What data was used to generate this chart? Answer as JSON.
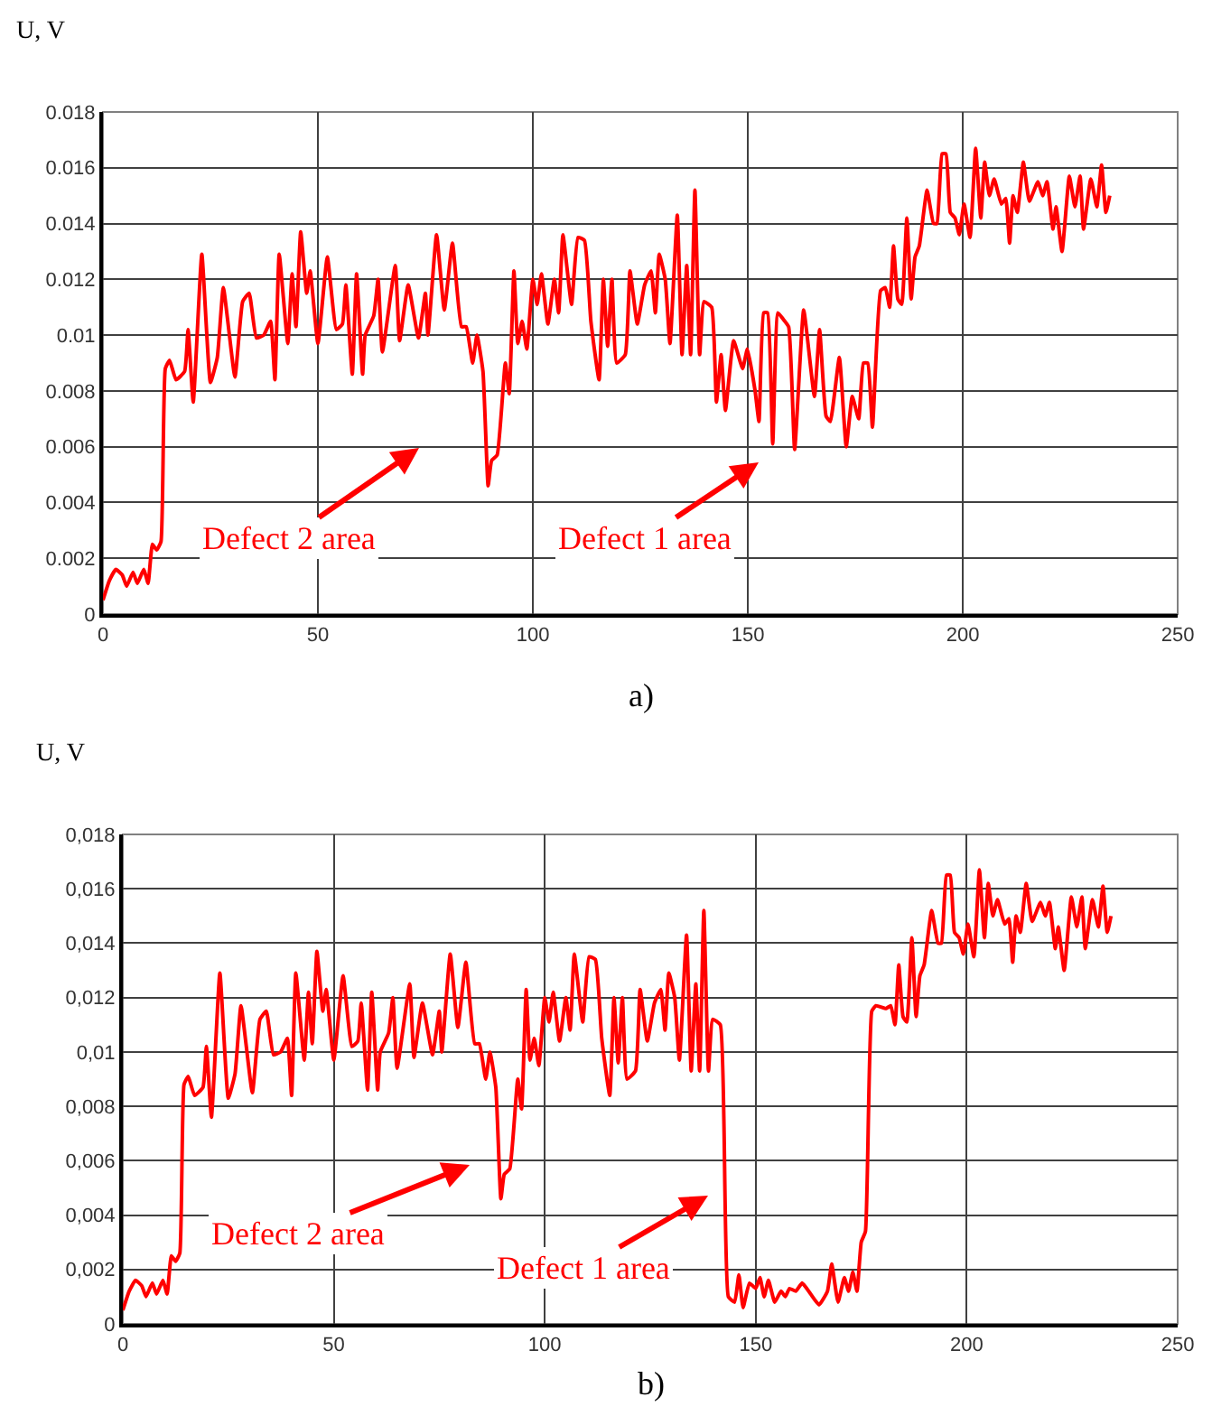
{
  "chart_data": [
    {
      "type": "line",
      "ylabel": "U, V",
      "xlim": [
        0,
        250
      ],
      "xticks": [
        0,
        50,
        100,
        150,
        200,
        250
      ],
      "ylim": [
        0,
        0.018
      ],
      "yticks": [
        0,
        0.002,
        0.004,
        0.006,
        0.008,
        0.01,
        0.012,
        0.014,
        0.016,
        0.018
      ],
      "grid": true,
      "annotations": [
        "Defect 2 area",
        "Defect 1 area",
        "a)"
      ],
      "series": [
        {
          "color": "#ff0000",
          "x": [
            0,
            1.5,
            3,
            4.5,
            5.5,
            7,
            8,
            9.5,
            10.5,
            11.5,
            12.5,
            13.5,
            14.5,
            15.5,
            17,
            19,
            19.8,
            21,
            23,
            25,
            26.6,
            28,
            30.7,
            32.5,
            34,
            35.7,
            37.4,
            39,
            40,
            41,
            43,
            44,
            44.9,
            46,
            47.4,
            48.2,
            50,
            52.2,
            54.3,
            55.7,
            56.5,
            58,
            59,
            60.4,
            61,
            63,
            64,
            65,
            68,
            69,
            71,
            73.4,
            75,
            75.6,
            77.6,
            79.4,
            81.3,
            83.4,
            84.5,
            86,
            87,
            88.4,
            89.6,
            90.4,
            91.7,
            93.6,
            94.5,
            95.6,
            96.5,
            97.5,
            98.6,
            100,
            101,
            102,
            103.5,
            105,
            106,
            107,
            109,
            110.5,
            112,
            113.5,
            115.4,
            116.4,
            117.4,
            118.4,
            119.5,
            121.5,
            122.6,
            124.3,
            126,
            127.5,
            128.5,
            129.4,
            130.8,
            131.9,
            133.6,
            134.7,
            135.8,
            136.7,
            137.7,
            138.8,
            139.8,
            141.6,
            142.7,
            143.8,
            144.8,
            146.7,
            148.8,
            149.9,
            151.7,
            152.6,
            153.7,
            154.6,
            155.8,
            157,
            158.1,
            159.5,
            160.9,
            163,
            165.5,
            166.7,
            168.2,
            169.2,
            171.3,
            172.9,
            174.3,
            175.8,
            176.9,
            177.9,
            179,
            180.9,
            182,
            183,
            183.9,
            184.9,
            185.8,
            187,
            188,
            188.9,
            189.9,
            191.7,
            193.2,
            194,
            195.2,
            196.1,
            197.1,
            198.2,
            199.2,
            200.3,
            201.7,
            203,
            204.2,
            205.1,
            206.2,
            207.3,
            209,
            210,
            210.9,
            211.7,
            212.7,
            214.1,
            215.5,
            217.5,
            218.6,
            219.6,
            221,
            221.7,
            223.1,
            224.8,
            226.1,
            227.3,
            228.1,
            229.8,
            231.2,
            232.3,
            233.3,
            234.2
          ],
          "values": [
            0.0005,
            0.0012,
            0.0016,
            0.0014,
            0.001,
            0.0015,
            0.0011,
            0.0016,
            0.0011,
            0.0025,
            0.0023,
            0.0026,
            0.0088,
            0.0091,
            0.0084,
            0.0087,
            0.0102,
            0.0076,
            0.0129,
            0.0083,
            0.0092,
            0.0117,
            0.0085,
            0.0112,
            0.0115,
            0.0099,
            0.01,
            0.0105,
            0.0084,
            0.0129,
            0.0097,
            0.0122,
            0.0103,
            0.0137,
            0.0115,
            0.0123,
            0.0097,
            0.0128,
            0.0102,
            0.0104,
            0.0118,
            0.0086,
            0.0122,
            0.0086,
            0.01,
            0.0107,
            0.012,
            0.0094,
            0.0125,
            0.0098,
            0.0118,
            0.0099,
            0.0115,
            0.01,
            0.0136,
            0.0109,
            0.0133,
            0.0103,
            0.0103,
            0.009,
            0.01,
            0.0087,
            0.0046,
            0.0055,
            0.0057,
            0.009,
            0.0079,
            0.0123,
            0.0097,
            0.0105,
            0.0095,
            0.012,
            0.0111,
            0.0122,
            0.0104,
            0.012,
            0.0108,
            0.0136,
            0.0111,
            0.0135,
            0.0134,
            0.0105,
            0.0084,
            0.012,
            0.0096,
            0.012,
            0.009,
            0.0093,
            0.0123,
            0.0104,
            0.0118,
            0.0123,
            0.0108,
            0.0129,
            0.012,
            0.0097,
            0.0143,
            0.0093,
            0.0125,
            0.0093,
            0.0152,
            0.0093,
            0.0112,
            0.011,
            0.0076,
            0.0093,
            0.0073,
            0.0098,
            0.0088,
            0.0095,
            0.008,
            0.0069,
            0.0108,
            0.0108,
            0.0061,
            0.0108,
            0.0106,
            0.0103,
            0.0059,
            0.0109,
            0.0078,
            0.0102,
            0.0071,
            0.0069,
            0.0092,
            0.006,
            0.0078,
            0.007,
            0.009,
            0.009,
            0.0067,
            0.0116,
            0.0117,
            0.011,
            0.0132,
            0.0113,
            0.0111,
            0.0142,
            0.0113,
            0.0128,
            0.0132,
            0.0152,
            0.014,
            0.014,
            0.0165,
            0.0165,
            0.0144,
            0.0142,
            0.0136,
            0.0147,
            0.0135,
            0.0167,
            0.0142,
            0.0162,
            0.015,
            0.0156,
            0.0147,
            0.0149,
            0.0133,
            0.015,
            0.0144,
            0.0162,
            0.0148,
            0.0155,
            0.015,
            0.0155,
            0.0138,
            0.0146,
            0.013,
            0.0157,
            0.0146,
            0.0157,
            0.0138,
            0.0156,
            0.0146,
            0.0161,
            0.0144,
            0.015
          ]
        }
      ]
    },
    {
      "type": "line",
      "ylabel": "U, V",
      "xlim": [
        0,
        250
      ],
      "xticks": [
        0,
        50,
        100,
        150,
        200,
        250
      ],
      "ylim": [
        0,
        0.018
      ],
      "yticks": [
        0,
        {
          "value": 0.002,
          "label": "0,002"
        },
        {
          "value": 0.004,
          "label": "0,004"
        },
        {
          "value": 0.006,
          "label": "0,006"
        },
        {
          "value": 0.008,
          "label": "0,008"
        },
        {
          "value": 0.01,
          "label": "0,01"
        },
        {
          "value": 0.012,
          "label": "0,012"
        },
        {
          "value": 0.014,
          "label": "0,014"
        },
        {
          "value": 0.016,
          "label": "0,016"
        },
        {
          "value": 0.018,
          "label": "0,018"
        }
      ],
      "grid": true,
      "annotations": [
        "Defect 2 area",
        "Defect 1 area",
        "b)"
      ],
      "series": [
        {
          "color": "#ff0000",
          "x": [
            0,
            1.5,
            3,
            4.5,
            5.5,
            7,
            8,
            9.5,
            10.5,
            11.5,
            12.5,
            13.5,
            14.5,
            15.5,
            17,
            19,
            19.8,
            21,
            23,
            25,
            26.6,
            28,
            30.7,
            32.5,
            34,
            35.7,
            37.4,
            39,
            40,
            41,
            43,
            44,
            44.9,
            46,
            47.4,
            48.2,
            50,
            52.2,
            54.3,
            55.7,
            56.5,
            58,
            59,
            60.4,
            61,
            63,
            64,
            65,
            68,
            69,
            71,
            73.4,
            75,
            75.6,
            77.6,
            79.4,
            81.3,
            83.4,
            84.5,
            86,
            87,
            88.4,
            89.6,
            90.4,
            91.7,
            93.6,
            94.5,
            95.6,
            96.5,
            97.5,
            98.6,
            100,
            101,
            102,
            103.5,
            105,
            106,
            107,
            109,
            110.5,
            112,
            113.5,
            115.4,
            116.4,
            117.4,
            118.4,
            119.5,
            121.5,
            122.6,
            124.3,
            126,
            127.5,
            128.5,
            129.4,
            130.8,
            131.9,
            133.6,
            134.7,
            135.8,
            136.7,
            137.7,
            138.8,
            139.8,
            141.6,
            143.5,
            145,
            146,
            147,
            148.5,
            150,
            151,
            152,
            153,
            154.5,
            156,
            157,
            158,
            159.5,
            161,
            163,
            165,
            167,
            168,
            169.5,
            171,
            172,
            173,
            174,
            175,
            176,
            177.5,
            178.5,
            180.9,
            182,
            183,
            183.9,
            184.9,
            185.8,
            187,
            188,
            188.9,
            189.9,
            191.7,
            193.2,
            194,
            195.2,
            196.1,
            197.1,
            198.2,
            199.2,
            200.3,
            201.7,
            203,
            204.2,
            205.1,
            206.2,
            207.3,
            209,
            210,
            210.9,
            211.7,
            212.7,
            214.1,
            215.5,
            217.5,
            218.6,
            219.6,
            221,
            221.7,
            223.1,
            224.8,
            226.1,
            227.3,
            228.1,
            229.8,
            231.2,
            232.3,
            233.3,
            234.2
          ],
          "values": [
            0.0005,
            0.0012,
            0.0016,
            0.0014,
            0.001,
            0.0015,
            0.0011,
            0.0016,
            0.0011,
            0.0025,
            0.0023,
            0.0026,
            0.0088,
            0.0091,
            0.0084,
            0.0087,
            0.0102,
            0.0076,
            0.0129,
            0.0083,
            0.0092,
            0.0117,
            0.0085,
            0.0112,
            0.0115,
            0.0099,
            0.01,
            0.0105,
            0.0084,
            0.0129,
            0.0097,
            0.0122,
            0.0103,
            0.0137,
            0.0115,
            0.0123,
            0.0097,
            0.0128,
            0.0102,
            0.0104,
            0.0118,
            0.0086,
            0.0122,
            0.0086,
            0.01,
            0.0107,
            0.012,
            0.0094,
            0.0125,
            0.0098,
            0.0118,
            0.0099,
            0.0115,
            0.01,
            0.0136,
            0.0109,
            0.0133,
            0.0103,
            0.0103,
            0.009,
            0.01,
            0.0087,
            0.0046,
            0.0055,
            0.0057,
            0.009,
            0.0079,
            0.0123,
            0.0097,
            0.0105,
            0.0095,
            0.012,
            0.0111,
            0.0122,
            0.0104,
            0.012,
            0.0108,
            0.0136,
            0.0111,
            0.0135,
            0.0134,
            0.0105,
            0.0084,
            0.012,
            0.0096,
            0.012,
            0.009,
            0.0093,
            0.0123,
            0.0104,
            0.0118,
            0.0123,
            0.0108,
            0.0129,
            0.012,
            0.0097,
            0.0143,
            0.0093,
            0.0125,
            0.0093,
            0.0152,
            0.0093,
            0.0112,
            0.011,
            0.001,
            0.0008,
            0.0018,
            0.0006,
            0.0015,
            0.0013,
            0.0017,
            0.001,
            0.0016,
            0.0008,
            0.0012,
            0.001,
            0.0013,
            0.0012,
            0.0015,
            0.0011,
            0.0007,
            0.0012,
            0.0022,
            0.0008,
            0.0017,
            0.0012,
            0.0019,
            0.0012,
            0.003,
            0.0034,
            0.0115,
            0.0117,
            0.0116,
            0.0117,
            0.011,
            0.0132,
            0.0113,
            0.0111,
            0.0142,
            0.0113,
            0.0128,
            0.0132,
            0.0152,
            0.014,
            0.014,
            0.0165,
            0.0165,
            0.0144,
            0.0142,
            0.0136,
            0.0147,
            0.0135,
            0.0167,
            0.0142,
            0.0162,
            0.015,
            0.0156,
            0.0147,
            0.0149,
            0.0133,
            0.015,
            0.0144,
            0.0162,
            0.0148,
            0.0155,
            0.015,
            0.0155,
            0.0138,
            0.0146,
            0.013,
            0.0157,
            0.0146,
            0.0157,
            0.0138,
            0.0156,
            0.0146,
            0.0161,
            0.0144,
            0.015
          ]
        }
      ]
    }
  ]
}
